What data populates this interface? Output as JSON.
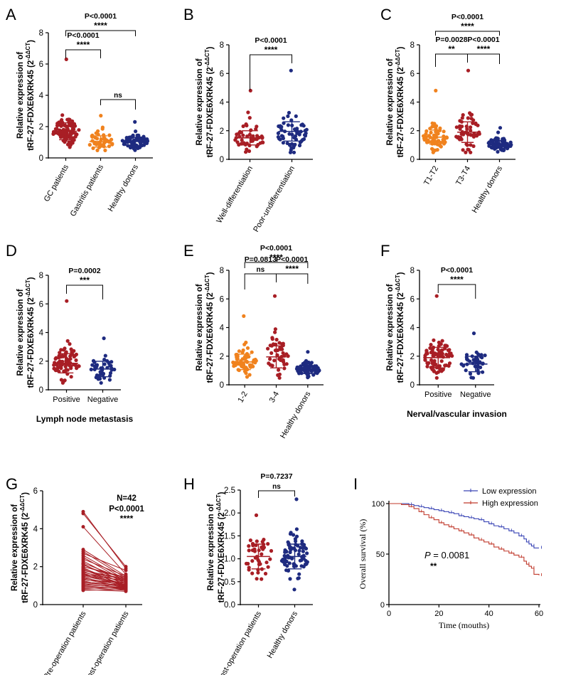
{
  "colors": {
    "red": "#a81e25",
    "orange": "#f0821e",
    "navy": "#1e2b80",
    "blue": "#3a45b5",
    "km_red": "#c0392b",
    "grey": "#555555"
  },
  "y_axis_label": {
    "line1": "Relative expression of",
    "line2": "tRF-27-FDXE6XRK45 (2",
    "sup": "-ΔΔCT",
    "close": ")"
  },
  "chart_data": [
    {
      "panel": "A",
      "type": "scatter",
      "title": "",
      "ylim": [
        0,
        8
      ],
      "yticks": [
        "0",
        "2",
        "4",
        "6",
        "8"
      ],
      "categories": [
        "GC patients",
        "Gastritis patients",
        "Healthy donors"
      ],
      "colors": [
        "red",
        "orange",
        "navy"
      ],
      "n": [
        95,
        45,
        75
      ],
      "means": [
        1.7,
        1.05,
        1.05
      ],
      "sd": [
        0.6,
        0.4,
        0.3
      ],
      "max": [
        6.3,
        2.7,
        2.3
      ],
      "comparisons": [
        {
          "from": 0,
          "to": 1,
          "p": "P<0.0001",
          "stars": "****"
        },
        {
          "from": 1,
          "to": 2,
          "p": "",
          "stars": "ns"
        },
        {
          "from": 0,
          "to": 2,
          "p": "P<0.0001",
          "stars": "****"
        }
      ],
      "xlabel": ""
    },
    {
      "panel": "B",
      "type": "scatter",
      "title": "",
      "ylim": [
        0,
        8
      ],
      "yticks": [
        "0",
        "2",
        "4",
        "6",
        "8"
      ],
      "categories": [
        "Well-differentiation",
        "Poor-undifferentiation"
      ],
      "colors": [
        "red",
        "navy"
      ],
      "n": [
        50,
        60
      ],
      "means": [
        1.5,
        1.95
      ],
      "sd": [
        0.55,
        0.75
      ],
      "max": [
        4.8,
        6.2
      ],
      "comparisons": [
        {
          "from": 0,
          "to": 1,
          "p": "P<0.0001",
          "stars": "****"
        }
      ],
      "xlabel": ""
    },
    {
      "panel": "C",
      "type": "scatter",
      "title": "",
      "ylim": [
        0,
        8
      ],
      "yticks": [
        "0",
        "2",
        "4",
        "6",
        "8"
      ],
      "categories": [
        "T1-T2",
        "T3-T4",
        "Healthy donors"
      ],
      "colors": [
        "orange",
        "red",
        "navy"
      ],
      "n": [
        60,
        55,
        80
      ],
      "means": [
        1.55,
        1.9
      ],
      "means_all": [
        1.55,
        1.9,
        1.05
      ],
      "sd": [
        0.55,
        0.8,
        0.3
      ],
      "max": [
        4.8,
        6.2,
        2.2
      ],
      "comparisons": [
        {
          "from": 0,
          "to": 1,
          "p": "P=0.0028",
          "stars": "**"
        },
        {
          "from": 1,
          "to": 2,
          "p": "P<0.0001",
          "stars": "****"
        },
        {
          "from": 0,
          "to": 2,
          "p": "P<0.0001",
          "stars": "****"
        }
      ],
      "xlabel": ""
    },
    {
      "panel": "D",
      "type": "scatter",
      "title": "",
      "ylim": [
        0,
        8
      ],
      "yticks": [
        "0",
        "2",
        "4",
        "6",
        "8"
      ],
      "categories": [
        "Positive",
        "Negative"
      ],
      "colors": [
        "red",
        "navy"
      ],
      "n": [
        75,
        40
      ],
      "means_all": [
        1.85,
        1.45
      ],
      "sd": [
        0.75,
        0.6
      ],
      "max": [
        6.2,
        3.6
      ],
      "comparisons": [
        {
          "from": 0,
          "to": 1,
          "p": "P=0.0002",
          "stars": "***"
        }
      ],
      "xlabel": "Lymph node metastasis"
    },
    {
      "panel": "E",
      "type": "scatter",
      "title": "",
      "ylim": [
        0,
        8
      ],
      "yticks": [
        "0",
        "2",
        "4",
        "6",
        "8"
      ],
      "categories": [
        "1-2",
        "3-4",
        "Healthy donors"
      ],
      "colors": [
        "orange",
        "red",
        "navy"
      ],
      "n": [
        65,
        45,
        80
      ],
      "means_all": [
        1.6,
        1.95,
        1.05
      ],
      "sd": [
        0.6,
        0.85,
        0.3
      ],
      "max": [
        4.8,
        6.2,
        2.3
      ],
      "comparisons": [
        {
          "from": 0,
          "to": 1,
          "p": "P=0.0813",
          "stars": "ns"
        },
        {
          "from": 1,
          "to": 2,
          "p": "P<0.0001",
          "stars": "****"
        },
        {
          "from": 0,
          "to": 2,
          "p": "P<0.0001",
          "stars": "****"
        }
      ],
      "xlabel": ""
    },
    {
      "panel": "F",
      "type": "scatter",
      "title": "",
      "ylim": [
        0,
        8
      ],
      "yticks": [
        "0",
        "2",
        "4",
        "6",
        "8"
      ],
      "categories": [
        "Positive",
        "Negative"
      ],
      "colors": [
        "red",
        "navy"
      ],
      "n": [
        80,
        40
      ],
      "means_all": [
        1.9,
        1.45
      ],
      "sd": [
        0.8,
        0.6
      ],
      "max": [
        6.2,
        3.6
      ],
      "comparisons": [
        {
          "from": 0,
          "to": 1,
          "p": "P<0.0001",
          "stars": "****"
        }
      ],
      "xlabel": "Nerval/vascular invasion"
    },
    {
      "panel": "G",
      "type": "paired",
      "title": "",
      "ylim": [
        0,
        6
      ],
      "yticks": [
        "0",
        "2",
        "4",
        "6"
      ],
      "categories": [
        "Pre-operation patients",
        "Post-operation patients"
      ],
      "annotation": {
        "n": "N=42",
        "p": "P<0.0001",
        "stars": "****"
      },
      "pre": [
        4.9,
        4.8,
        4.1,
        2.9,
        2.8,
        2.7,
        2.6,
        2.5,
        2.4,
        2.3,
        2.2,
        2.15,
        2.1,
        2.0,
        1.95,
        1.9,
        1.85,
        1.8,
        1.75,
        1.7,
        1.65,
        1.6,
        1.55,
        1.5,
        1.45,
        1.4,
        1.35,
        1.3,
        1.25,
        1.2,
        1.15,
        1.1,
        1.05,
        1.0,
        0.95,
        0.9,
        0.85,
        0.8,
        0.75,
        1.6,
        1.8,
        2.0
      ],
      "post": [
        1.9,
        2.0,
        1.6,
        1.5,
        1.4,
        1.8,
        1.3,
        1.2,
        1.5,
        1.1,
        1.3,
        1.0,
        1.2,
        1.4,
        0.9,
        1.1,
        1.0,
        1.3,
        0.95,
        1.2,
        1.0,
        0.9,
        1.1,
        1.05,
        0.85,
        1.0,
        0.9,
        1.15,
        0.8,
        1.0,
        0.95,
        0.85,
        0.9,
        0.8,
        0.85,
        0.75,
        0.9,
        0.7,
        0.8,
        1.25,
        1.35,
        1.45
      ],
      "xlabel": ""
    },
    {
      "panel": "H",
      "type": "scatter",
      "title": "",
      "ylim": [
        0,
        2.5
      ],
      "yticks": [
        "0.0",
        "0.5",
        "1.0",
        "1.5",
        "2.0",
        "2.5"
      ],
      "categories": [
        "Post-operation patients",
        "Healthy donors"
      ],
      "colors": [
        "red",
        "navy"
      ],
      "n": [
        42,
        80
      ],
      "means_all": [
        1.05,
        1.05
      ],
      "sd": [
        0.3,
        0.3
      ],
      "max": [
        1.95,
        2.3
      ],
      "comparisons": [
        {
          "from": 0,
          "to": 1,
          "p": "P=0.7237",
          "stars": "ns"
        }
      ],
      "xlabel": ""
    },
    {
      "panel": "I",
      "type": "line",
      "title": "",
      "xlabel": "Time (mouths)",
      "ylabel": "Overall survival (%)",
      "xlim": [
        0,
        60
      ],
      "ylim": [
        0,
        100
      ],
      "xticks": [
        "0",
        "20",
        "40",
        "60"
      ],
      "yticks": [
        "0",
        "50",
        "100"
      ],
      "legend": [
        "Low expression",
        "High expression"
      ],
      "p_label": "P",
      "p_value": "= 0.0081",
      "stars": "**",
      "series": [
        {
          "name": "Low expression",
          "color": "blue",
          "x": [
            0,
            5,
            8,
            10,
            12,
            14,
            16,
            18,
            20,
            22,
            24,
            26,
            28,
            30,
            32,
            34,
            36,
            38,
            40,
            42,
            44,
            46,
            48,
            50,
            52,
            54,
            55,
            56,
            57,
            58,
            60
          ],
          "y": [
            100,
            100,
            99,
            98,
            97,
            96,
            95,
            94,
            93,
            92,
            91,
            90,
            88,
            87,
            86,
            85,
            84,
            82,
            80,
            78,
            77,
            75,
            73,
            71,
            68,
            65,
            62,
            60,
            58,
            56,
            56
          ]
        },
        {
          "name": "High expression",
          "color": "km_red",
          "x": [
            0,
            5,
            8,
            10,
            12,
            14,
            16,
            18,
            20,
            22,
            24,
            26,
            28,
            30,
            32,
            34,
            36,
            38,
            40,
            42,
            44,
            46,
            48,
            50,
            52,
            54,
            55,
            56,
            57,
            58,
            60
          ],
          "y": [
            100,
            99,
            97,
            95,
            92,
            89,
            86,
            84,
            81,
            79,
            77,
            75,
            73,
            71,
            69,
            66,
            64,
            62,
            60,
            57,
            55,
            53,
            51,
            49,
            47,
            43,
            40,
            38,
            36,
            30,
            29
          ]
        }
      ]
    }
  ]
}
